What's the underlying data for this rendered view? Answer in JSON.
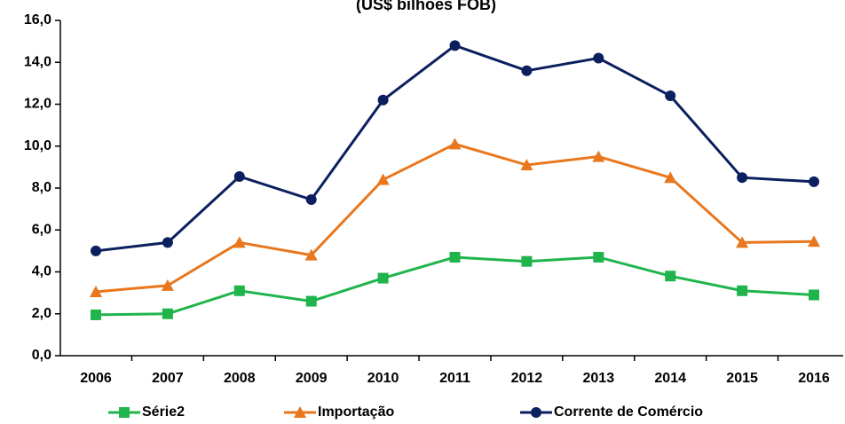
{
  "chart_data": {
    "type": "line",
    "title": "(US$ bilhões FOB)",
    "categories": [
      "2006",
      "2007",
      "2008",
      "2009",
      "2010",
      "2011",
      "2012",
      "2013",
      "2014",
      "2015",
      "2016"
    ],
    "series": [
      {
        "name": "Série2",
        "color": "#1fb44c",
        "marker": "square",
        "values": [
          1.95,
          2.0,
          3.1,
          2.6,
          3.7,
          4.7,
          4.5,
          4.7,
          3.8,
          3.1,
          2.9
        ]
      },
      {
        "name": "Importação",
        "color": "#e8771e",
        "marker": "triangle",
        "values": [
          3.05,
          3.35,
          5.4,
          4.8,
          8.4,
          10.1,
          9.1,
          9.5,
          8.5,
          5.4,
          5.45
        ]
      },
      {
        "name": "Corrente de Comércio",
        "color": "#0c1f5e",
        "marker": "circle",
        "values": [
          5.0,
          5.4,
          8.55,
          7.45,
          12.2,
          14.8,
          13.6,
          14.2,
          12.4,
          8.5,
          8.3
        ]
      }
    ],
    "ylim": [
      0,
      16
    ],
    "yticks": [
      {
        "value": 0,
        "label": "0,0"
      },
      {
        "value": 2,
        "label": "2,0"
      },
      {
        "value": 4,
        "label": "4,0"
      },
      {
        "value": 6,
        "label": "6,0"
      },
      {
        "value": 8,
        "label": "8,0"
      },
      {
        "value": 10,
        "label": "10,0"
      },
      {
        "value": 12,
        "label": "12,0"
      },
      {
        "value": 14,
        "label": "14,0"
      },
      {
        "value": 16,
        "label": "16,0"
      }
    ],
    "legend": "bottom"
  }
}
